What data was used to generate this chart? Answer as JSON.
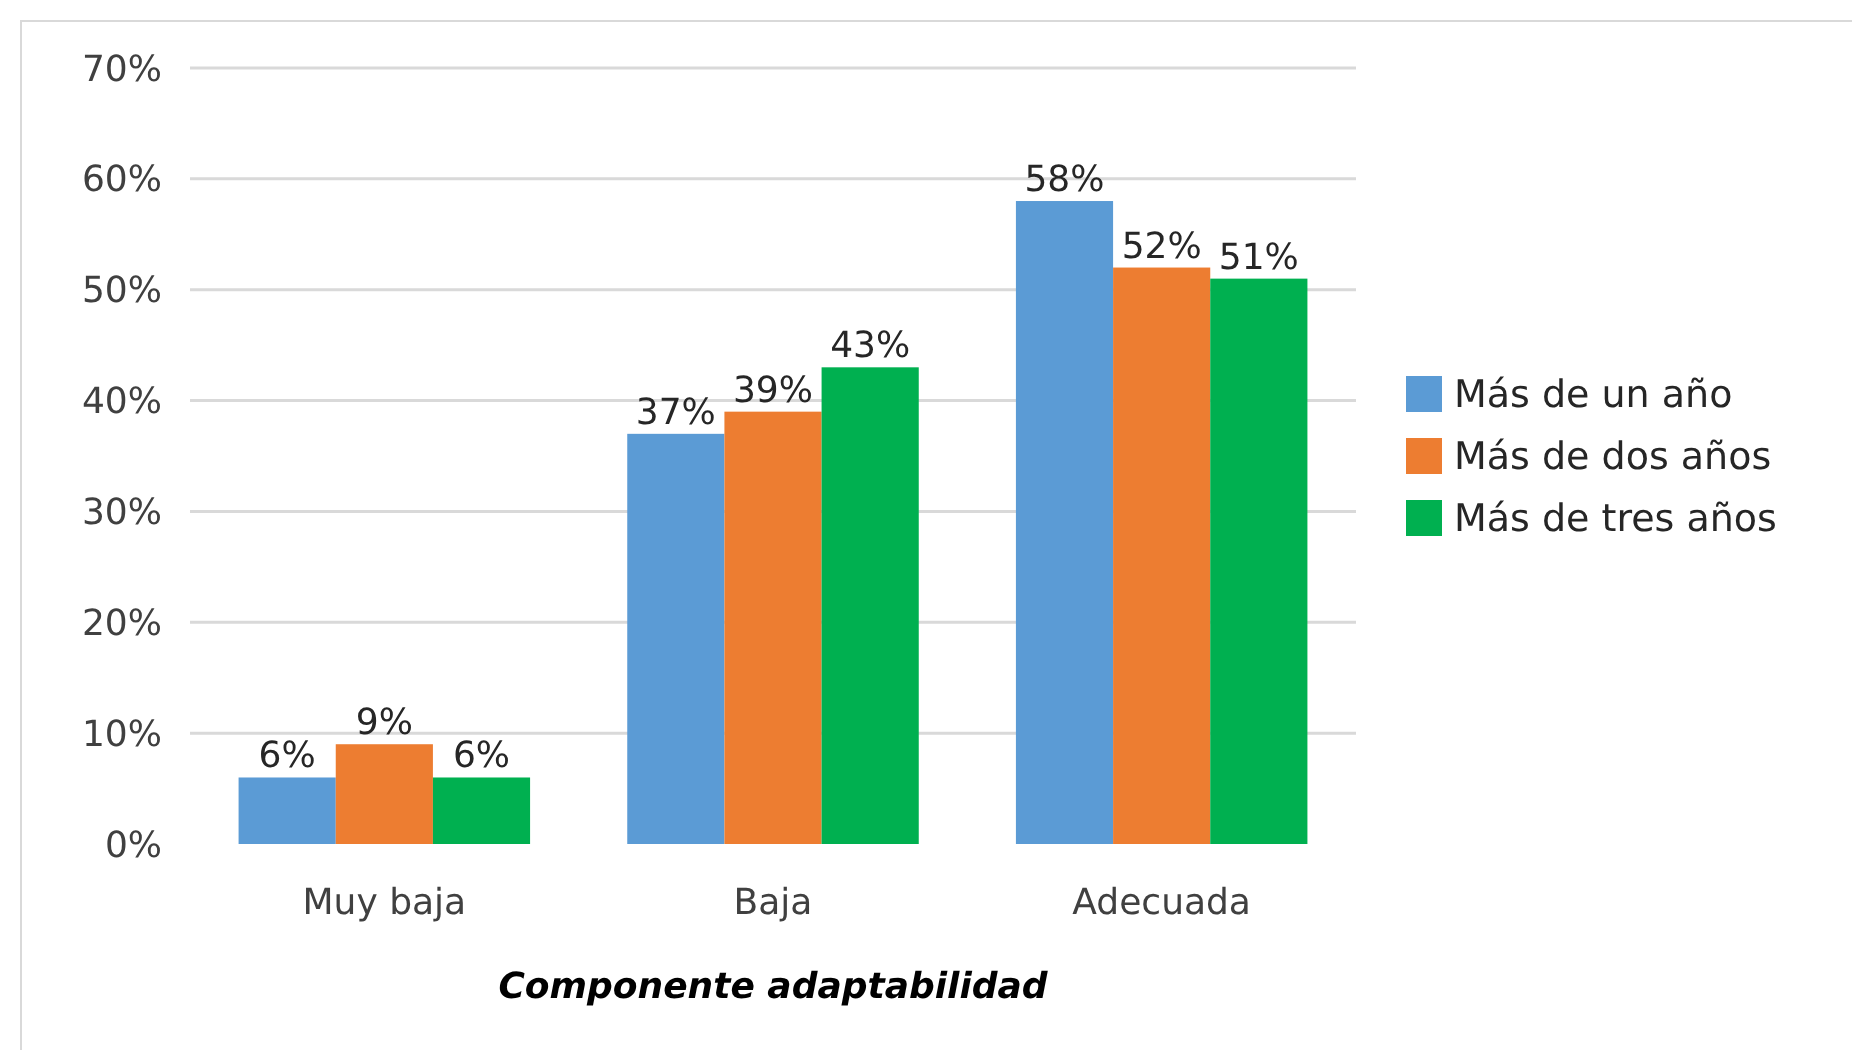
{
  "chart_data": {
    "type": "bar",
    "xlabel": "Componente adaptabilidad",
    "categories": [
      "Muy baja",
      "Baja",
      "Adecuada"
    ],
    "series": [
      {
        "name": "Más de un año",
        "color": "#5b9bd5",
        "values": [
          6,
          37,
          58
        ],
        "value_labels": [
          "6%",
          "37%",
          "58%"
        ]
      },
      {
        "name": "Más de dos años",
        "color": "#ed7d31",
        "values": [
          9,
          39,
          52
        ],
        "value_labels": [
          "9%",
          "39%",
          "52%"
        ]
      },
      {
        "name": "Más de tres años",
        "color": "#00b050",
        "values": [
          6,
          43,
          51
        ],
        "value_labels": [
          "6%",
          "43%",
          "51%"
        ]
      }
    ],
    "ylim": [
      0,
      70
    ],
    "yticks": [
      {
        "value": 0,
        "label": "0%"
      },
      {
        "value": 10,
        "label": "10%"
      },
      {
        "value": 20,
        "label": "20%"
      },
      {
        "value": 30,
        "label": "30%"
      },
      {
        "value": 40,
        "label": "40%"
      },
      {
        "value": 50,
        "label": "50%"
      },
      {
        "value": 60,
        "label": "60%"
      },
      {
        "value": 70,
        "label": "70%"
      }
    ],
    "grid": "y",
    "legend": "right"
  }
}
